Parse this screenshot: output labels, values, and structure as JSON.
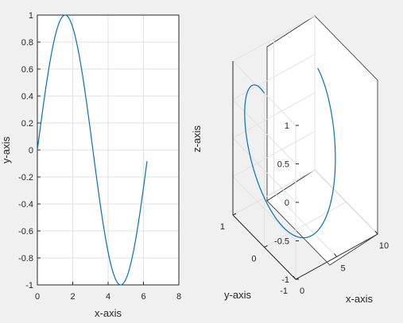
{
  "chart_data": [
    {
      "type": "line",
      "title": "",
      "xlabel": "x-axis",
      "ylabel": "y-axis",
      "xlim": [
        0,
        8
      ],
      "ylim": [
        -1,
        1
      ],
      "xticks": [
        "0",
        "2",
        "4",
        "6",
        "8"
      ],
      "yticks": [
        "-1",
        "-0.8",
        "-0.6",
        "-0.4",
        "-0.2",
        "0",
        "0.2",
        "0.4",
        "0.6",
        "0.8",
        "1"
      ],
      "grid": true,
      "series": [
        {
          "function": "y = sin(x)",
          "x_range": [
            0,
            6.2
          ],
          "x": [
            0,
            0.5,
            1,
            1.5708,
            2,
            2.5,
            3,
            3.5,
            4,
            4.5,
            4.7124,
            5,
            5.5,
            6,
            6.2
          ],
          "y": [
            0,
            0.479,
            0.841,
            1.0,
            0.909,
            0.598,
            0.141,
            -0.351,
            -0.757,
            -0.978,
            -1.0,
            -0.959,
            -0.706,
            -0.279,
            -0.083
          ],
          "color": "#0072bd"
        }
      ]
    },
    {
      "type": "line",
      "projection": "3d",
      "title": "",
      "xlabel": "x-axis",
      "ylabel": "y-axis",
      "zlabel": "z-axis",
      "xlim": [
        0,
        10
      ],
      "ylim": [
        -1,
        1
      ],
      "zlim": [
        -1,
        1
      ],
      "xticks": [
        "0",
        "5",
        "10"
      ],
      "yticks": [
        "-1",
        "0",
        "1"
      ],
      "zticks": [
        "-1",
        "-0.5",
        "0",
        "0.5",
        "1"
      ],
      "grid": true,
      "series": [
        {
          "function": "x = t, y = sin(t), z = cos(t)",
          "t_range": [
            0,
            6.2
          ],
          "color": "#0072bd"
        }
      ]
    }
  ]
}
